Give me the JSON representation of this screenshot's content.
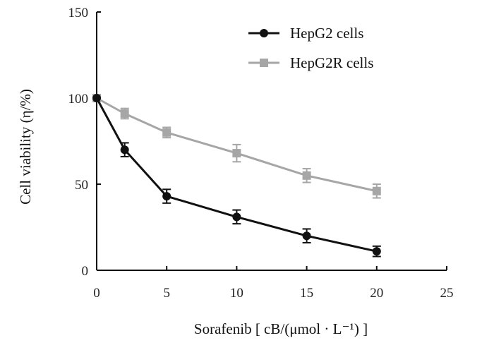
{
  "chart_data": {
    "type": "line",
    "title": "",
    "xlabel": "Sorafenib [ cB/(μmol · L⁻¹) ]",
    "ylabel": "Cell viability (η/%)",
    "xlim": [
      0,
      25
    ],
    "ylim": [
      0,
      150
    ],
    "x_ticks": [
      "0",
      "5",
      "10",
      "15",
      "20",
      "25"
    ],
    "y_ticks": [
      "0",
      "50",
      "100",
      "150"
    ],
    "grid": false,
    "legend_position": "top-right",
    "series": [
      {
        "name": "HepG2 cells",
        "color": "#111111",
        "marker": "circle",
        "x": [
          0,
          2,
          5,
          10,
          15,
          20
        ],
        "y": [
          100,
          70,
          43,
          31,
          20,
          11
        ],
        "error": [
          0,
          4,
          4,
          4,
          4,
          3
        ]
      },
      {
        "name": "HepG2R cells",
        "color": "#a6a6a6",
        "marker": "square",
        "x": [
          0,
          2,
          5,
          10,
          15,
          20
        ],
        "y": [
          100,
          91,
          80,
          68,
          55,
          46
        ],
        "error": [
          0,
          3,
          3,
          5,
          4,
          4
        ]
      }
    ]
  }
}
